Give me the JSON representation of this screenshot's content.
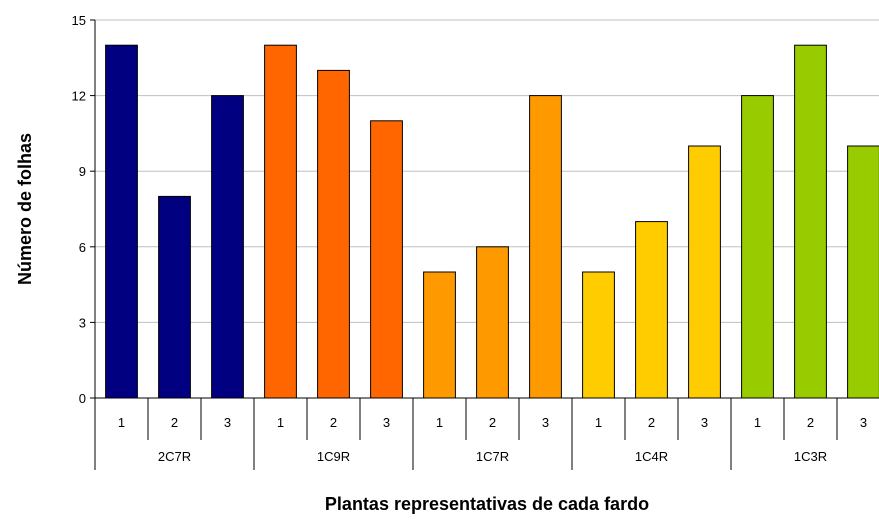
{
  "chart_data": {
    "type": "bar",
    "xlabel": "Plantas representativas de cada fardo",
    "ylabel": "Número de folhas",
    "ylim": [
      0,
      15
    ],
    "yticks": [
      0,
      3,
      6,
      9,
      12,
      15
    ],
    "grid": true,
    "groups": [
      {
        "name": "2C7R",
        "color": "#000080",
        "categories": [
          "1",
          "2",
          "3"
        ],
        "values": [
          14,
          8,
          12
        ]
      },
      {
        "name": "1C9R",
        "color": "#FF6600",
        "categories": [
          "1",
          "2",
          "3"
        ],
        "values": [
          14,
          13,
          11
        ]
      },
      {
        "name": "1C7R",
        "color": "#FF9900",
        "categories": [
          "1",
          "2",
          "3"
        ],
        "values": [
          5,
          6,
          12
        ]
      },
      {
        "name": "1C4R",
        "color": "#FFCC00",
        "categories": [
          "1",
          "2",
          "3"
        ],
        "values": [
          5,
          7,
          10
        ]
      },
      {
        "name": "1C3R",
        "color": "#99CC00",
        "categories": [
          "1",
          "2",
          "3"
        ],
        "values": [
          12,
          14,
          10
        ]
      }
    ]
  }
}
